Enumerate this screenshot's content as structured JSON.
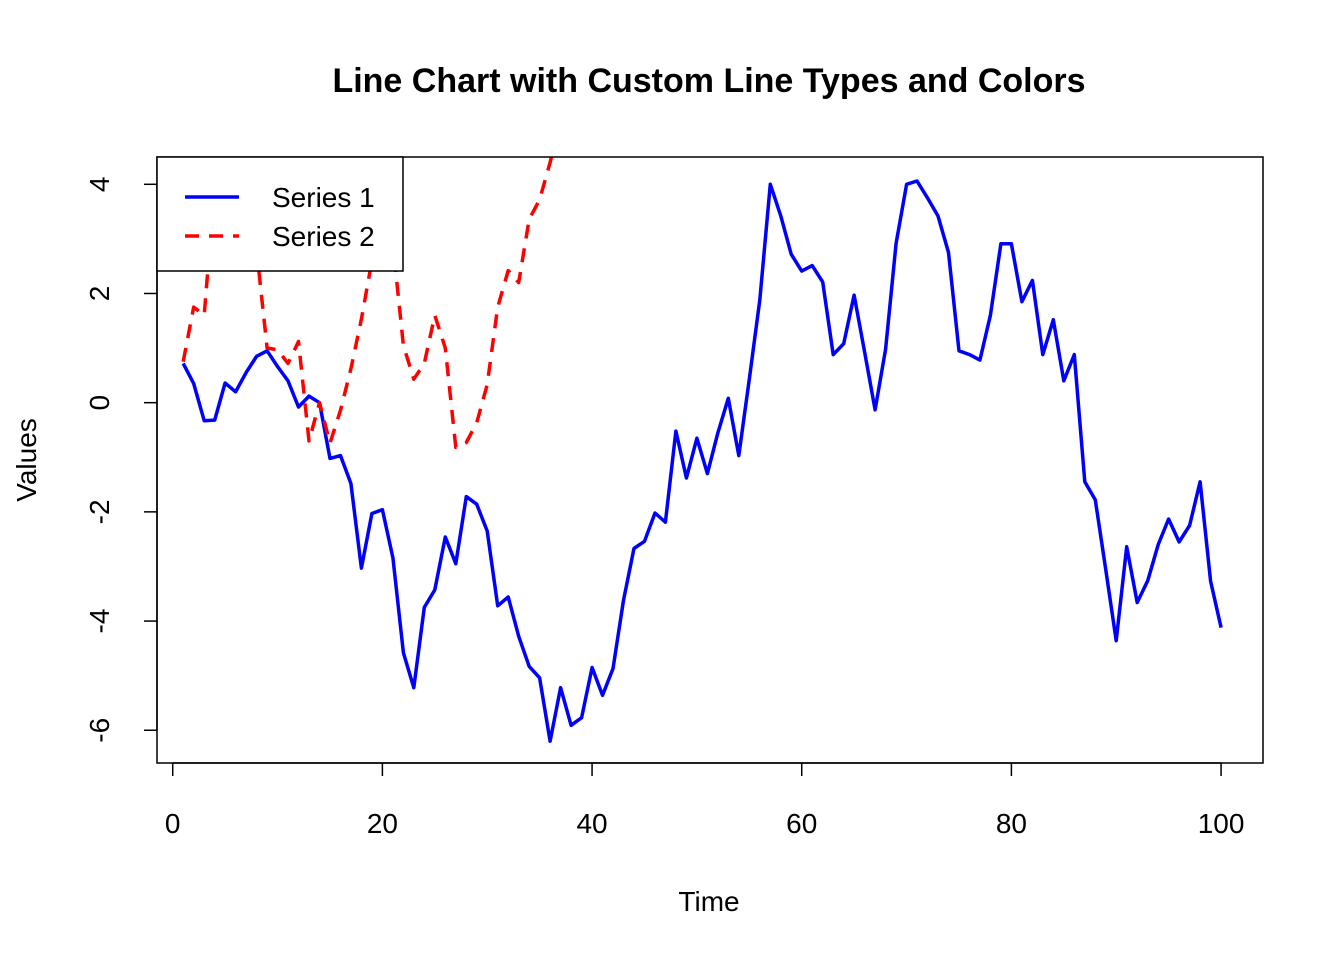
{
  "chart_data": {
    "type": "line",
    "title": "Line Chart with Custom Line Types and Colors",
    "xlabel": "Time",
    "ylabel": "Values",
    "xlim": [
      -1.5,
      104
    ],
    "ylim": [
      -6.6,
      4.5
    ],
    "x_ticks": [
      0,
      20,
      40,
      60,
      80,
      100
    ],
    "y_ticks": [
      -6,
      -4,
      -2,
      0,
      2,
      4
    ],
    "legend_position": "top-left",
    "series": [
      {
        "name": "Series 1",
        "color": "#0000ff",
        "line_style": "solid",
        "x": [
          1,
          2,
          3,
          4,
          5,
          6,
          7,
          8,
          9,
          10,
          11,
          12,
          13,
          14,
          15,
          16,
          17,
          18,
          19,
          20,
          21,
          22,
          23,
          24,
          25,
          26,
          27,
          28,
          29,
          30,
          31,
          32,
          33,
          34,
          35,
          36,
          37,
          38,
          39,
          40,
          41,
          42,
          43,
          44,
          45,
          46,
          47,
          48,
          49,
          50,
          51,
          52,
          53,
          54,
          55,
          56,
          57,
          58,
          59,
          60,
          61,
          62,
          63,
          64,
          65,
          66,
          67,
          68,
          69,
          70,
          71,
          72,
          73,
          74,
          75,
          76,
          77,
          78,
          79,
          80,
          81,
          82,
          83,
          84,
          85,
          86,
          87,
          88,
          89,
          90,
          91,
          92,
          93,
          94,
          95,
          96,
          97,
          98,
          99,
          100
        ],
        "values": [
          0.72,
          0.35,
          -0.33,
          -0.32,
          0.36,
          0.2,
          0.55,
          0.85,
          0.95,
          0.66,
          0.4,
          -0.08,
          0.12,
          0.0,
          -1.02,
          -0.97,
          -1.48,
          -3.03,
          -2.03,
          -1.96,
          -2.84,
          -4.58,
          -5.22,
          -3.75,
          -3.43,
          -2.46,
          -2.95,
          -1.72,
          -1.86,
          -2.35,
          -3.72,
          -3.56,
          -4.28,
          -4.83,
          -5.04,
          -6.2,
          -5.22,
          -5.91,
          -5.77,
          -4.85,
          -5.36,
          -4.87,
          -3.62,
          -2.67,
          -2.54,
          -2.02,
          -2.19,
          -0.52,
          -1.38,
          -0.65,
          -1.3,
          -0.55,
          0.08,
          -0.97,
          0.43,
          1.88,
          4.0,
          3.42,
          2.72,
          2.41,
          2.51,
          2.21,
          0.88,
          1.08,
          1.97,
          0.93,
          -0.13,
          0.98,
          2.92,
          4.0,
          4.06,
          3.75,
          3.42,
          2.75,
          0.95,
          0.88,
          0.78,
          1.6,
          2.91,
          2.91,
          1.85,
          2.24,
          0.88,
          1.52,
          0.4,
          0.88,
          -1.45,
          -1.78,
          -3.05,
          -4.36,
          -2.64,
          -3.66,
          -3.26,
          -2.6,
          -2.13,
          -2.55,
          -2.25,
          -1.45,
          -3.27,
          -4.12
        ]
      },
      {
        "name": "Series 2",
        "color": "#ff0000",
        "line_style": "dashed",
        "x": [
          1,
          2,
          3,
          4,
          5,
          6,
          7,
          8,
          9,
          10,
          11,
          12,
          13,
          14,
          15,
          16,
          17,
          18,
          19,
          20,
          21,
          22,
          23,
          24,
          25,
          26,
          27,
          28,
          29,
          30,
          31,
          32,
          33,
          34,
          35,
          36,
          37
        ],
        "values": [
          0.75,
          1.75,
          1.6,
          4.0,
          3.7,
          3.8,
          3.5,
          2.8,
          1.0,
          0.97,
          0.72,
          1.12,
          -0.7,
          0.0,
          -0.74,
          -0.14,
          0.62,
          1.53,
          2.6,
          3.3,
          2.9,
          1.05,
          0.43,
          0.72,
          1.6,
          1.0,
          -0.82,
          -0.73,
          -0.37,
          0.33,
          1.75,
          2.42,
          2.2,
          3.36,
          3.72,
          4.4,
          5.2
        ]
      }
    ]
  }
}
